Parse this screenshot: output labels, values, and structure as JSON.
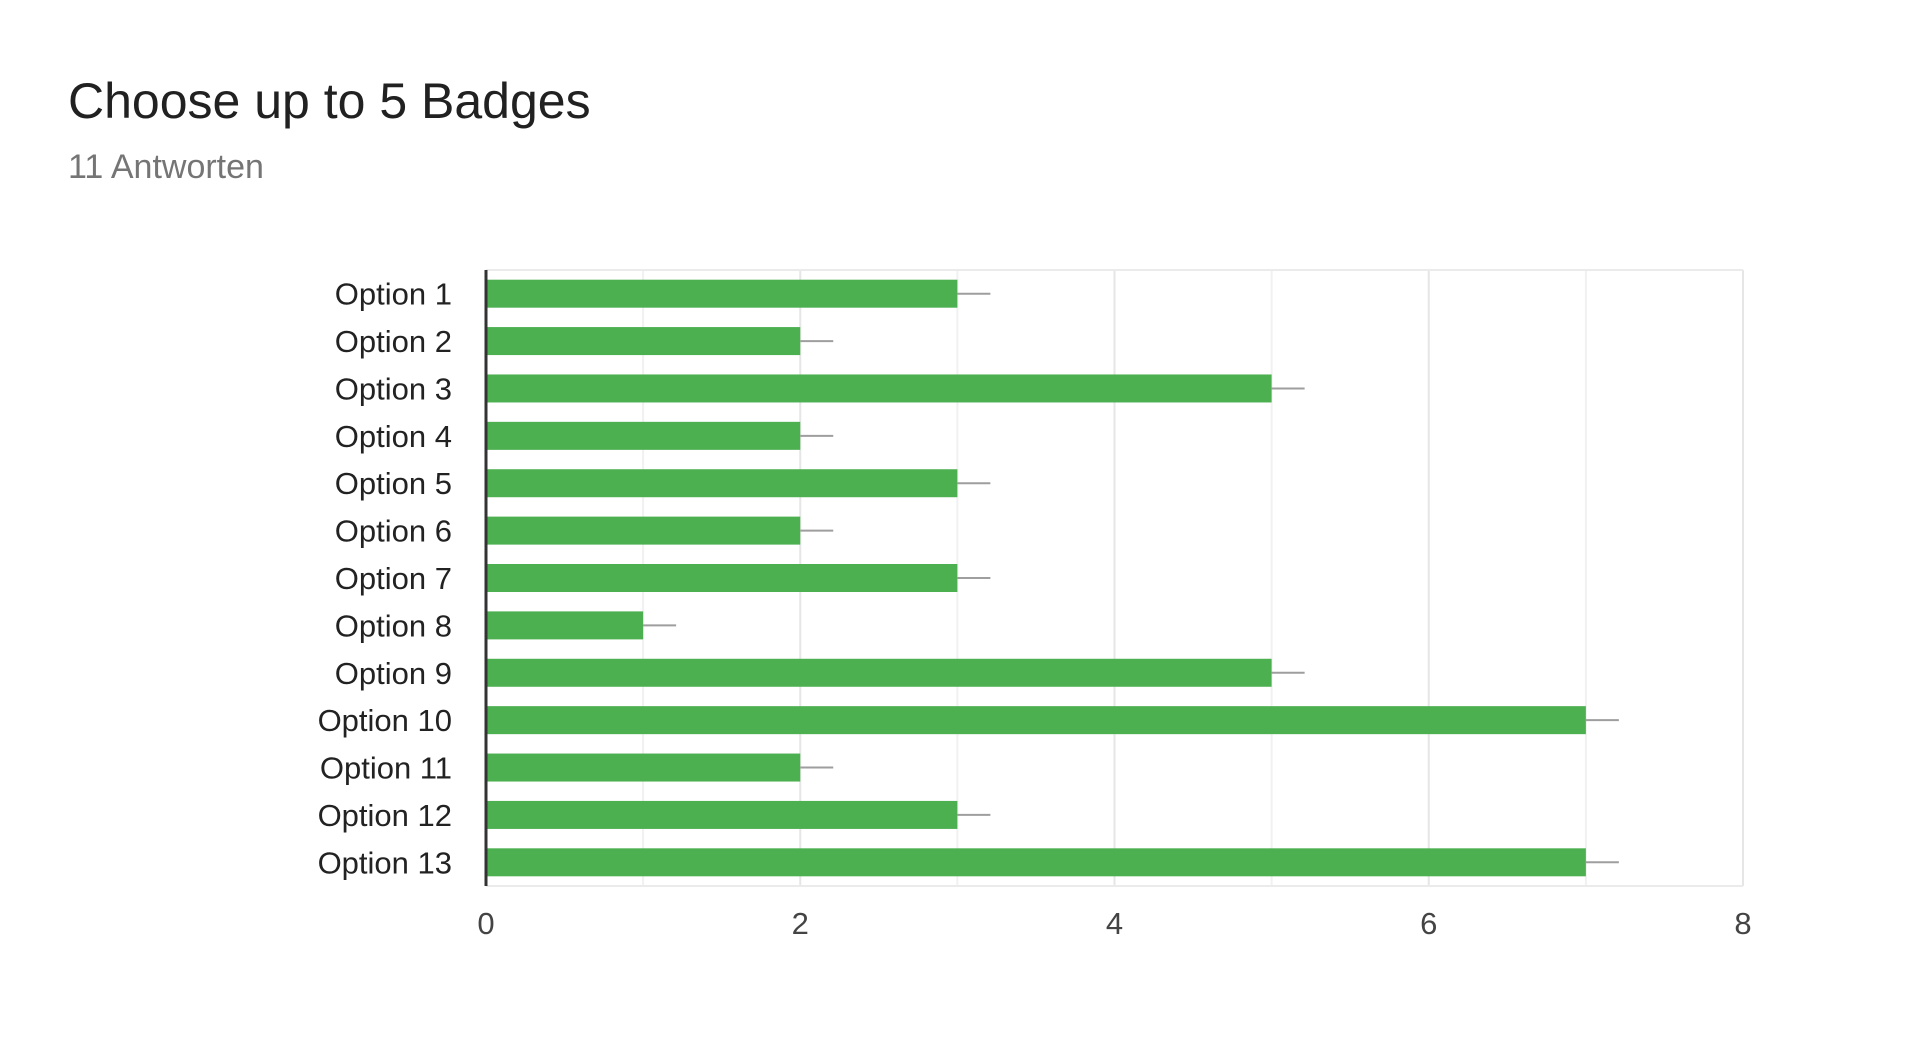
{
  "header": {
    "title": "Choose up to 5 Badges",
    "subtitle": "11 Antworten"
  },
  "chart_data": {
    "type": "bar",
    "orientation": "horizontal",
    "categories": [
      "Option 1",
      "Option 2",
      "Option 3",
      "Option 4",
      "Option 5",
      "Option 6",
      "Option 7",
      "Option 8",
      "Option 9",
      "Option 10",
      "Option 11",
      "Option 12",
      "Option 13"
    ],
    "values": [
      3,
      2,
      5,
      2,
      3,
      2,
      3,
      1,
      5,
      7,
      2,
      3,
      7
    ],
    "xlim": [
      0,
      8
    ],
    "xticks": [
      "0",
      "2",
      "4",
      "6",
      "8"
    ],
    "grid": true,
    "error_bars": true,
    "bar_color": "#4caf50",
    "error_color": "#9e9e9e",
    "grid_color": "#ebebeb",
    "axis_color": "#333333"
  }
}
